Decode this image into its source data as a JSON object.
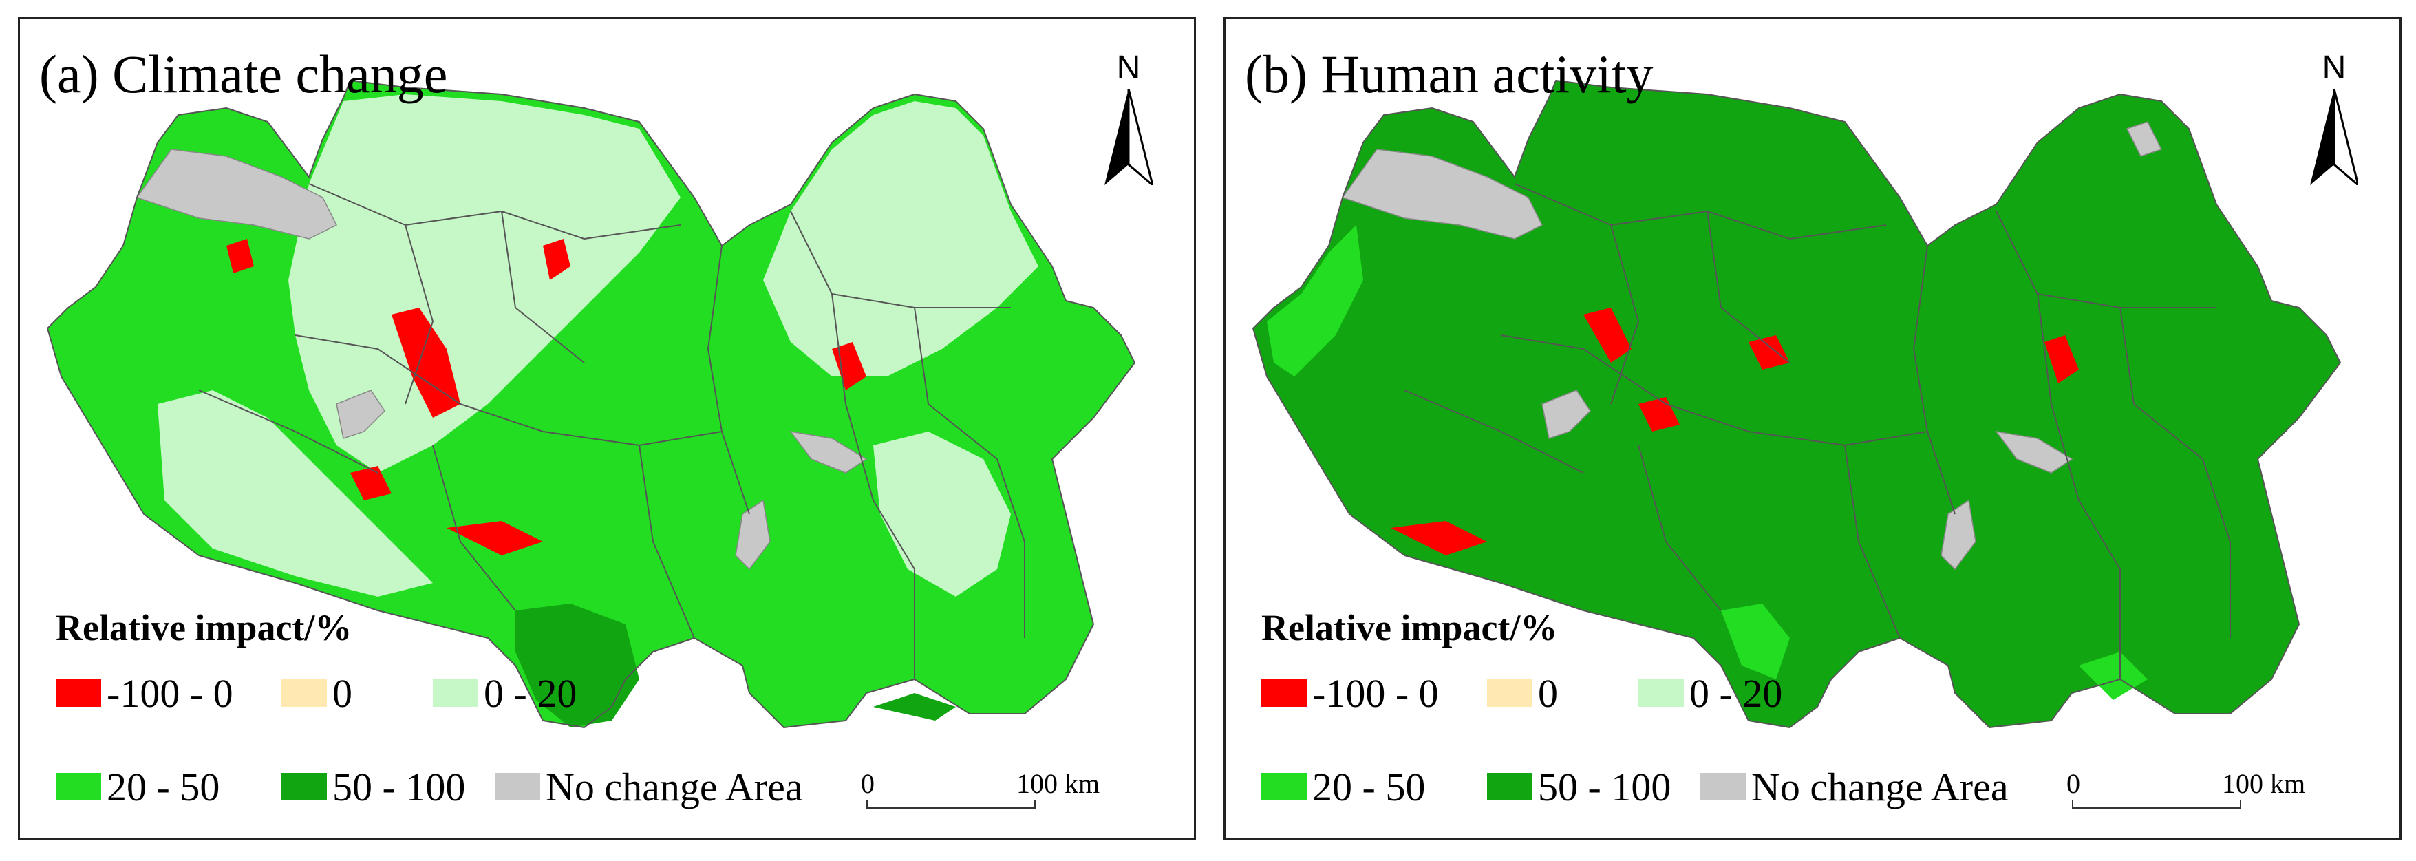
{
  "legend": {
    "title": "Relative impact/%",
    "items": [
      {
        "label": "-100 - 0",
        "color": "#ff0000"
      },
      {
        "label": "0",
        "color": "#ffe9b0"
      },
      {
        "label": "0 - 20",
        "color": "#c6f7c6"
      },
      {
        "label": "20 - 50",
        "color": "#22dd22"
      },
      {
        "label": "50 - 100",
        "color": "#11a611"
      },
      {
        "label": "No change Area",
        "color": "#c8c8c8"
      }
    ]
  },
  "north": {
    "label": "N"
  },
  "scale": {
    "zero": "0",
    "max": "100",
    "unit": "km"
  },
  "panels": [
    {
      "title": "(a) Climate change",
      "base_color": "#22dd22",
      "patch_color": "#c6f7c6",
      "accent_color": "#ff0000"
    },
    {
      "title": "(b) Human activity",
      "base_color": "#11a611",
      "patch_color": "#22dd22",
      "accent_color": "#ff0000"
    }
  ],
  "colors": {
    "water": "#c8c8c8",
    "boundary": "#555555"
  }
}
